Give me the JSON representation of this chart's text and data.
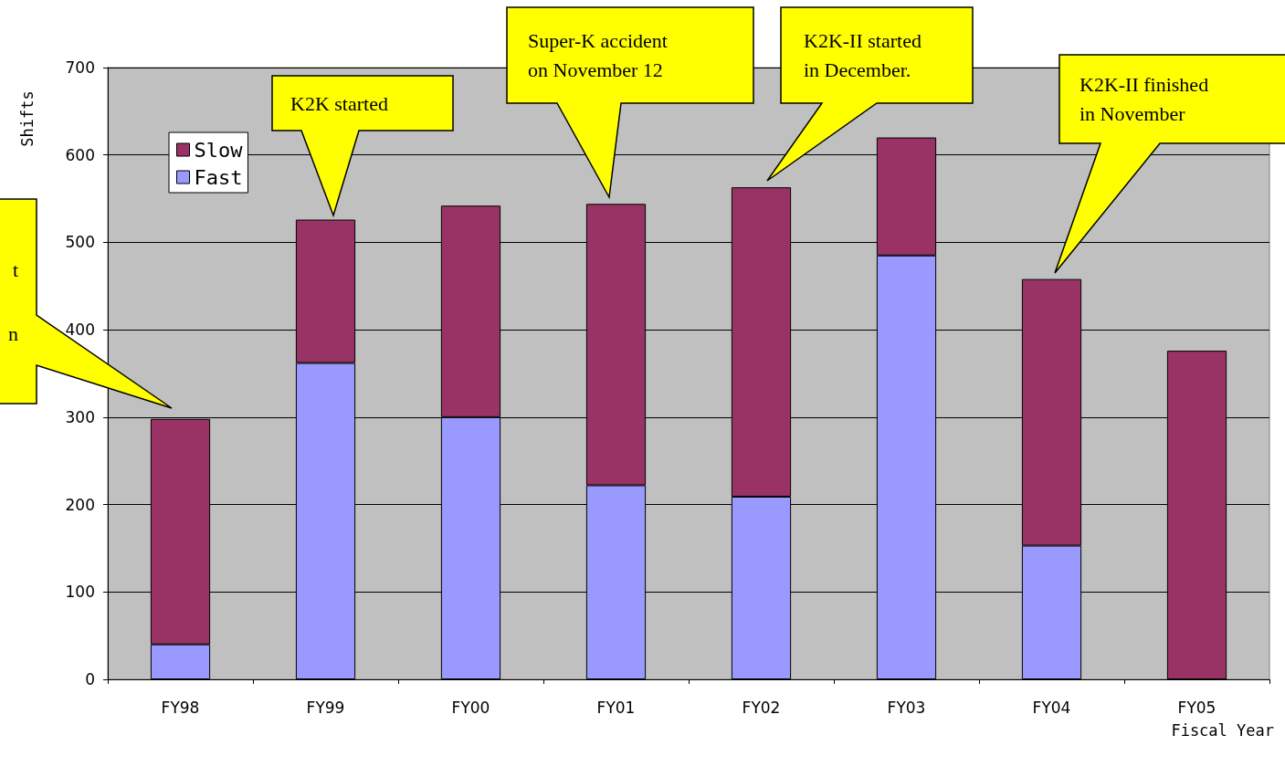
{
  "chart_data": {
    "type": "bar",
    "stacked": true,
    "xlabel": "Fiscal Year",
    "ylabel": "Shifts",
    "categories": [
      "FY98",
      "FY99",
      "FY00",
      "FY01",
      "FY02",
      "FY03",
      "FY04",
      "FY05"
    ],
    "series": [
      {
        "name": "Fast",
        "color": "#9999ff",
        "values": [
          40,
          362,
          300,
          222,
          209,
          485,
          153,
          0
        ]
      },
      {
        "name": "Slow",
        "color": "#993366",
        "values": [
          258,
          164,
          242,
          322,
          354,
          135,
          305,
          376
        ]
      }
    ],
    "ylim": [
      0,
      700
    ],
    "yticks": [
      0,
      100,
      200,
      300,
      400,
      500,
      600,
      700
    ],
    "grid": "y",
    "legend": "top left",
    "annotations": [
      "t\nn",
      "K2K started",
      "Super-K accident\non November 12",
      "K2K-II started\nin December.",
      "K2K-II finished\nin November"
    ]
  }
}
